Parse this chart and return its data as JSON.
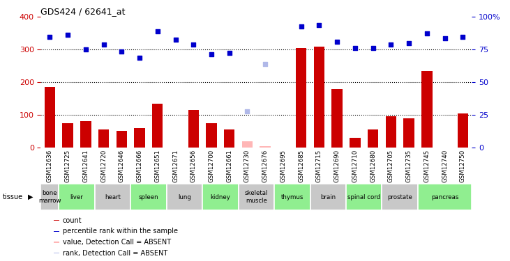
{
  "title": "GDS424 / 62641_at",
  "gsm_labels": [
    "GSM12636",
    "GSM12725",
    "GSM12641",
    "GSM12720",
    "GSM12646",
    "GSM12666",
    "GSM12651",
    "GSM12671",
    "GSM12656",
    "GSM12700",
    "GSM12661",
    "GSM12730",
    "GSM12676",
    "GSM12695",
    "GSM12685",
    "GSM12715",
    "GSM12690",
    "GSM12710",
    "GSM12680",
    "GSM12705",
    "GSM12735",
    "GSM12745",
    "GSM12740",
    "GSM12750"
  ],
  "tissues": [
    {
      "name": "bone\nmarrow",
      "start": 0,
      "end": 1,
      "color": "#c8c8c8"
    },
    {
      "name": "liver",
      "start": 1,
      "end": 3,
      "color": "#90ee90"
    },
    {
      "name": "heart",
      "start": 3,
      "end": 5,
      "color": "#c8c8c8"
    },
    {
      "name": "spleen",
      "start": 5,
      "end": 7,
      "color": "#90ee90"
    },
    {
      "name": "lung",
      "start": 7,
      "end": 9,
      "color": "#c8c8c8"
    },
    {
      "name": "kidney",
      "start": 9,
      "end": 11,
      "color": "#90ee90"
    },
    {
      "name": "skeletal\nmuscle",
      "start": 11,
      "end": 13,
      "color": "#c8c8c8"
    },
    {
      "name": "thymus",
      "start": 13,
      "end": 15,
      "color": "#90ee90"
    },
    {
      "name": "brain",
      "start": 15,
      "end": 17,
      "color": "#c8c8c8"
    },
    {
      "name": "spinal cord",
      "start": 17,
      "end": 19,
      "color": "#90ee90"
    },
    {
      "name": "prostate",
      "start": 19,
      "end": 21,
      "color": "#c8c8c8"
    },
    {
      "name": "pancreas",
      "start": 21,
      "end": 24,
      "color": "#90ee90"
    }
  ],
  "count_values": [
    185,
    75,
    80,
    55,
    50,
    60,
    135,
    0,
    115,
    75,
    55,
    0,
    0,
    0,
    305,
    310,
    180,
    30,
    55,
    95,
    90,
    235,
    0,
    105
  ],
  "count_absent": [
    false,
    false,
    false,
    false,
    false,
    false,
    false,
    false,
    false,
    false,
    false,
    true,
    true,
    false,
    false,
    false,
    false,
    false,
    false,
    false,
    false,
    false,
    false,
    false
  ],
  "count_absent_values": [
    0,
    0,
    0,
    0,
    0,
    0,
    0,
    0,
    0,
    0,
    0,
    20,
    5,
    0,
    0,
    0,
    0,
    0,
    0,
    0,
    0,
    0,
    0,
    0
  ],
  "rank_values": [
    340,
    345,
    300,
    315,
    295,
    275,
    355,
    330,
    315,
    285,
    290,
    0,
    0,
    0,
    370,
    375,
    325,
    305,
    305,
    315,
    320,
    350,
    335,
    340
  ],
  "rank_absent": [
    false,
    false,
    false,
    false,
    false,
    false,
    false,
    false,
    false,
    false,
    false,
    true,
    true,
    false,
    false,
    false,
    false,
    false,
    false,
    false,
    false,
    false,
    false,
    false
  ],
  "rank_absent_values": [
    0,
    0,
    0,
    0,
    0,
    0,
    0,
    0,
    0,
    0,
    0,
    110,
    255,
    0,
    0,
    0,
    0,
    0,
    0,
    0,
    0,
    0,
    0,
    0
  ],
  "ylim": [
    0,
    400
  ],
  "yticks": [
    0,
    100,
    200,
    300,
    400
  ],
  "y2ticks": [
    0,
    25,
    50,
    75,
    100
  ],
  "bar_color": "#cc0000",
  "bar_absent_color": "#ffb6b6",
  "rank_color": "#0000cc",
  "rank_absent_color": "#b0b8e8",
  "gsm_bg_color": "#d0d0d0",
  "background_color": "#ffffff"
}
